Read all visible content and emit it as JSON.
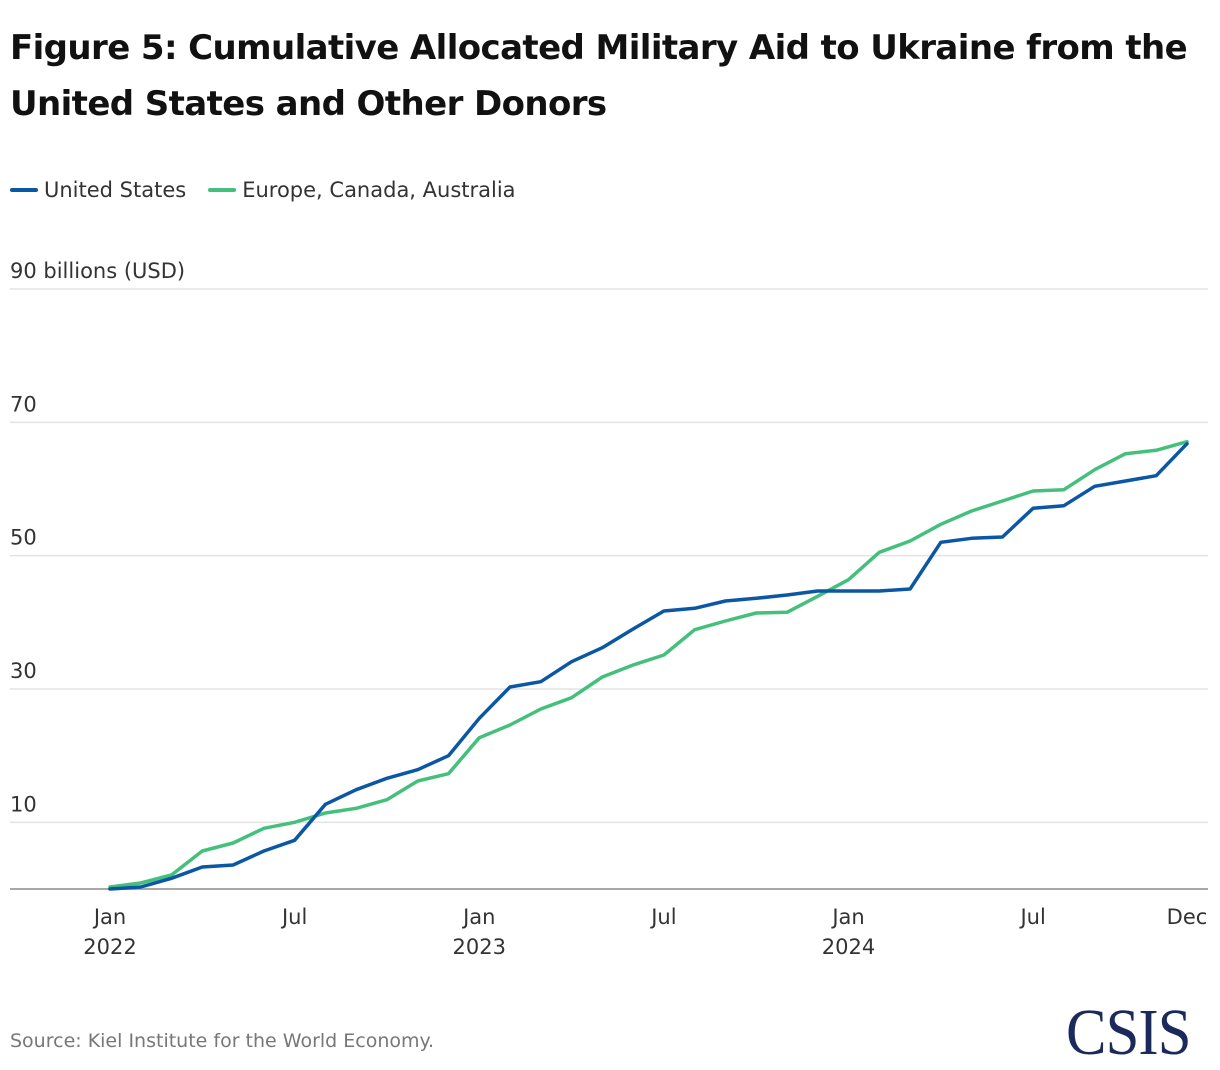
{
  "title": "Figure 5: Cumulative Allocated Military Aid to Ukraine from the United States and Other Donors",
  "source": "Source: Kiel Institute for the World Economy.",
  "logo_text": "CSIS",
  "colors": {
    "united_states": "#0b57a4",
    "europe_canada_australia": "#45c07c",
    "gridline": "#e3e3e3",
    "axis": "#a8a8a8",
    "logo": "#1b2a5b"
  },
  "legend": [
    {
      "name": "United States",
      "color": "#0b57a4"
    },
    {
      "name": "Europe, Canada, Australia",
      "color": "#45c07c"
    }
  ],
  "chart_data": {
    "type": "line",
    "title": "Figure 5: Cumulative Allocated Military Aid to Ukraine from the United States and Other Donors",
    "xlabel": "",
    "ylabel": "billions (USD)",
    "ylim": [
      0,
      90
    ],
    "yticks": [
      10,
      30,
      50,
      70,
      90
    ],
    "ytick_labels": [
      "10",
      "30",
      "50",
      "70",
      "90 billions (USD)"
    ],
    "grid": true,
    "legend_position": "top-left",
    "x": [
      "2022-01",
      "2022-02",
      "2022-03",
      "2022-04",
      "2022-05",
      "2022-06",
      "2022-07",
      "2022-08",
      "2022-09",
      "2022-10",
      "2022-11",
      "2022-12",
      "2023-01",
      "2023-02",
      "2023-03",
      "2023-04",
      "2023-05",
      "2023-06",
      "2023-07",
      "2023-08",
      "2023-09",
      "2023-10",
      "2023-11",
      "2023-12",
      "2024-01",
      "2024-02",
      "2024-03",
      "2024-04",
      "2024-05",
      "2024-06",
      "2024-07",
      "2024-08",
      "2024-09",
      "2024-10",
      "2024-11",
      "2024-12"
    ],
    "xticks": [
      {
        "index": 0,
        "line1": "Jan",
        "line2": "2022"
      },
      {
        "index": 6,
        "line1": "Jul",
        "line2": ""
      },
      {
        "index": 12,
        "line1": "Jan",
        "line2": "2023"
      },
      {
        "index": 18,
        "line1": "Jul",
        "line2": ""
      },
      {
        "index": 24,
        "line1": "Jan",
        "line2": "2024"
      },
      {
        "index": 30,
        "line1": "Jul",
        "line2": ""
      },
      {
        "index": 35,
        "line1": "Dec",
        "line2": ""
      }
    ],
    "series": [
      {
        "name": "United States",
        "color": "#0b57a4",
        "values": [
          0.0,
          0.3,
          1.6,
          3.3,
          3.6,
          5.7,
          7.3,
          12.7,
          14.9,
          16.6,
          17.9,
          20.0,
          25.6,
          30.3,
          31.1,
          34.1,
          36.2,
          39.0,
          41.7,
          42.1,
          43.2,
          43.6,
          44.1,
          44.7,
          44.7,
          44.7,
          45.0,
          52.0,
          52.6,
          52.8,
          57.1,
          57.5,
          60.4,
          61.2,
          62.0,
          66.8
        ]
      },
      {
        "name": "Europe, Canada, Australia",
        "color": "#45c07c",
        "values": [
          0.3,
          0.9,
          2.1,
          5.7,
          6.9,
          9.1,
          10.0,
          11.4,
          12.1,
          13.4,
          16.2,
          17.3,
          22.7,
          24.6,
          27.0,
          28.7,
          31.8,
          33.6,
          35.1,
          38.9,
          40.2,
          41.4,
          41.5,
          43.9,
          46.4,
          50.5,
          52.2,
          54.7,
          56.7,
          58.2,
          59.7,
          59.9,
          62.9,
          65.3,
          65.8,
          67.1
        ]
      }
    ]
  }
}
